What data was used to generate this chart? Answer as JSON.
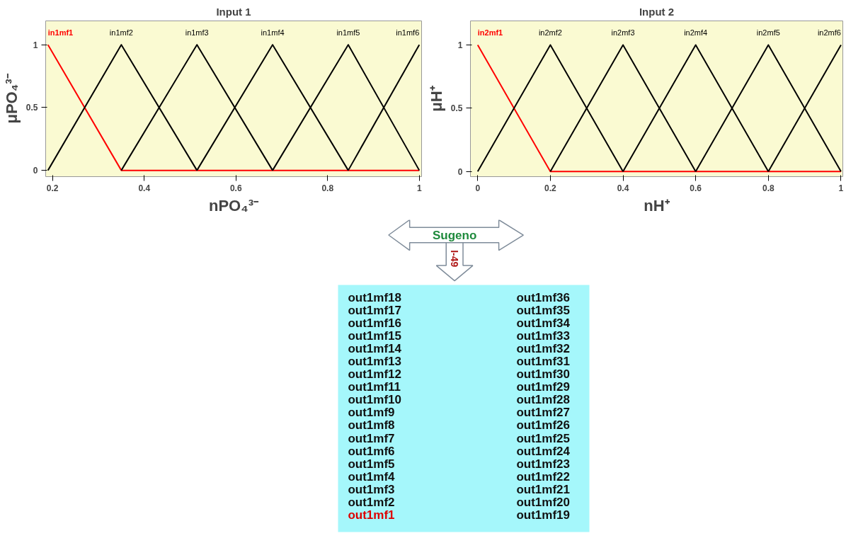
{
  "chart_data": [
    {
      "type": "line",
      "title": "Input 1",
      "xlabel": "nPO₄³⁻",
      "ylabel": "μPO₄³⁻",
      "xlim": [
        0.185,
        1.005
      ],
      "ylim": [
        -0.05,
        1.19
      ],
      "xticks": [
        0.2,
        0.4,
        0.6,
        0.8,
        1
      ],
      "yticks": [
        0,
        0.5,
        1
      ],
      "grid": false,
      "series": [
        {
          "name": "in1mf1",
          "color": "#ff0000",
          "x": [
            0.19,
            0.35,
            1.0
          ],
          "values": [
            1,
            0,
            0
          ]
        },
        {
          "name": "in1mf2",
          "color": "#000000",
          "x": [
            0.19,
            0.35,
            0.515
          ],
          "values": [
            0,
            1,
            0
          ]
        },
        {
          "name": "in1mf3",
          "color": "#000000",
          "x": [
            0.35,
            0.515,
            0.68
          ],
          "values": [
            0,
            1,
            0
          ]
        },
        {
          "name": "in1mf4",
          "color": "#000000",
          "x": [
            0.515,
            0.68,
            0.845
          ],
          "values": [
            0,
            1,
            0
          ]
        },
        {
          "name": "in1mf5",
          "color": "#000000",
          "x": [
            0.68,
            0.845,
            1.0
          ],
          "values": [
            0,
            1,
            0
          ]
        },
        {
          "name": "in1mf6",
          "color": "#000000",
          "x": [
            0.845,
            1.0
          ],
          "values": [
            0,
            1
          ]
        }
      ]
    },
    {
      "type": "line",
      "title": "Input 2",
      "xlabel": "nH⁺",
      "ylabel": "μH⁺",
      "xlim": [
        -0.02,
        1.005
      ],
      "ylim": [
        -0.04,
        1.19
      ],
      "xticks": [
        0,
        0.2,
        0.4,
        0.6,
        0.8,
        1
      ],
      "yticks": [
        0,
        0.5,
        1
      ],
      "grid": false,
      "series": [
        {
          "name": "in2mf1",
          "color": "#ff0000",
          "x": [
            0,
            0.2,
            1.0
          ],
          "values": [
            1,
            0,
            0
          ]
        },
        {
          "name": "in2mf2",
          "color": "#000000",
          "x": [
            0,
            0.2,
            0.4
          ],
          "values": [
            0,
            1,
            0
          ]
        },
        {
          "name": "in2mf3",
          "color": "#000000",
          "x": [
            0.2,
            0.4,
            0.6
          ],
          "values": [
            0,
            1,
            0
          ]
        },
        {
          "name": "in2mf4",
          "color": "#000000",
          "x": [
            0.4,
            0.6,
            0.8
          ],
          "values": [
            0,
            1,
            0
          ]
        },
        {
          "name": "in2mf5",
          "color": "#000000",
          "x": [
            0.6,
            0.8,
            1.0
          ],
          "values": [
            0,
            1,
            0
          ]
        },
        {
          "name": "in2mf6",
          "color": "#000000",
          "x": [
            0.8,
            1.0
          ],
          "values": [
            0,
            1
          ]
        }
      ]
    },
    {
      "type": "other",
      "annotations": [
        "Sugeno",
        "I-49"
      ],
      "categories": [
        "out1mf18",
        "out1mf17",
        "out1mf16",
        "out1mf15",
        "out1mf14",
        "out1mf13",
        "out1mf12",
        "out1mf11",
        "out1mf10",
        "out1mf9",
        "out1mf8",
        "out1mf7",
        "out1mf6",
        "out1mf5",
        "out1mf4",
        "out1mf3",
        "out1mf2",
        "out1mf1",
        "out1mf36",
        "out1mf35",
        "out1mf34",
        "out1mf33",
        "out1mf32",
        "out1mf31",
        "out1mf30",
        "out1mf29",
        "out1mf28",
        "out1mf27",
        "out1mf26",
        "out1mf25",
        "out1mf24",
        "out1mf23",
        "out1mf22",
        "out1mf21",
        "out1mf20",
        "out1mf19"
      ]
    }
  ]
}
